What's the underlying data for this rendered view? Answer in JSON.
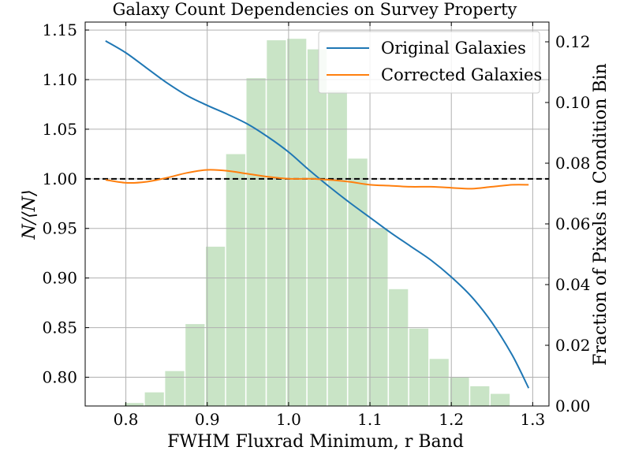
{
  "chart_data": {
    "type": "line",
    "title": "Galaxy Count Dependencies on Survey Property",
    "xlabel": "FWHM Fluxrad Minimum, r Band",
    "ylabel": "N/⟨N⟩",
    "y2label": "Fraction of Pixels in Condition Bin",
    "xlim": [
      0.75,
      1.32
    ],
    "ylim": [
      0.771,
      1.158
    ],
    "y2lim": [
      0.0,
      0.1265
    ],
    "xticks": [
      "0.8",
      "0.9",
      "1.0",
      "1.1",
      "1.2",
      "1.3"
    ],
    "yticks": [
      "0.80",
      "0.85",
      "0.90",
      "0.95",
      "1.00",
      "1.05",
      "1.10",
      "1.15"
    ],
    "y2ticks": [
      "0.00",
      "0.02",
      "0.04",
      "0.06",
      "0.08",
      "0.10",
      "0.12"
    ],
    "grid": true,
    "legend_position": "top-right",
    "reference_line": {
      "y": 1.0,
      "style": "dashed",
      "color": "#000000"
    },
    "series": [
      {
        "name": "Original Galaxies",
        "color": "#1f77b4",
        "x": [
          0.775,
          0.8,
          0.825,
          0.85,
          0.875,
          0.9,
          0.925,
          0.95,
          0.975,
          1.0,
          1.025,
          1.05,
          1.075,
          1.1,
          1.125,
          1.15,
          1.175,
          1.2,
          1.225,
          1.25,
          1.275,
          1.295
        ],
        "y": [
          1.139,
          1.127,
          1.112,
          1.097,
          1.084,
          1.074,
          1.065,
          1.055,
          1.042,
          1.027,
          1.009,
          0.992,
          0.976,
          0.961,
          0.946,
          0.932,
          0.918,
          0.901,
          0.881,
          0.855,
          0.822,
          0.789
        ]
      },
      {
        "name": "Corrected Galaxies",
        "color": "#ff7f0e",
        "x": [
          0.775,
          0.8,
          0.825,
          0.85,
          0.875,
          0.9,
          0.925,
          0.95,
          0.975,
          1.0,
          1.025,
          1.05,
          1.075,
          1.1,
          1.125,
          1.15,
          1.175,
          1.2,
          1.225,
          1.25,
          1.275,
          1.295
        ],
        "y": [
          0.999,
          0.996,
          0.997,
          1.001,
          1.006,
          1.009,
          1.008,
          1.005,
          1.002,
          1.0,
          1.0,
          0.999,
          0.997,
          0.994,
          0.993,
          0.992,
          0.992,
          0.991,
          0.99,
          0.992,
          0.994,
          0.994
        ]
      }
    ],
    "histogram": {
      "name": "Fraction of Pixels in Condition Bin",
      "axis": "y2",
      "color": "#c9e4c6",
      "bin_width": 0.025,
      "bin_centers": [
        0.785,
        0.81,
        0.835,
        0.86,
        0.885,
        0.91,
        0.935,
        0.96,
        0.985,
        1.01,
        1.035,
        1.06,
        1.085,
        1.11,
        1.135,
        1.16,
        1.185,
        1.21,
        1.235,
        1.26,
        1.285
      ],
      "values": [
        0.0,
        0.001,
        0.0045,
        0.0115,
        0.027,
        0.0525,
        0.083,
        0.108,
        0.1205,
        0.121,
        0.1175,
        0.104,
        0.0815,
        0.0585,
        0.0385,
        0.0255,
        0.0155,
        0.0095,
        0.0065,
        0.004,
        0.0
      ]
    }
  }
}
